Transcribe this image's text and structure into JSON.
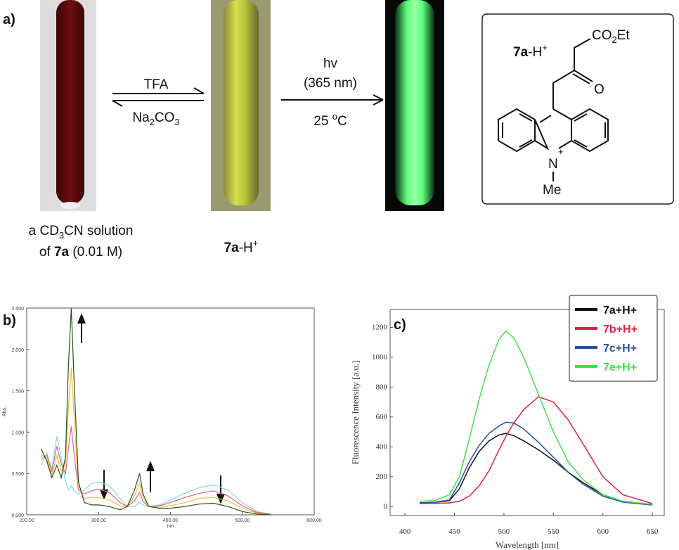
{
  "panel_a": {
    "label": "a)",
    "reagent_forward": "TFA",
    "reagent_reverse": [
      "Na",
      "2",
      "CO",
      "3"
    ],
    "irradiation": [
      "hv",
      "(365 nm)"
    ],
    "temperature": [
      "25 ",
      "o",
      "C"
    ],
    "start_caption": [
      [
        "a CD",
        "3",
        "CN solution"
      ],
      [
        "of ",
        "7a",
        " (0.01 M)"
      ]
    ],
    "product_caption": [
      "7a",
      "-H",
      "+"
    ],
    "structure": {
      "name": [
        "7a",
        "-H",
        "+"
      ],
      "ester": [
        "CO",
        "2",
        "Et"
      ],
      "carbonyl": "O",
      "nitrogen": "N",
      "charge": "+",
      "methyl": "Me"
    }
  },
  "chart_data": [
    {
      "type": "line",
      "label": "b)",
      "x_label": "nm",
      "y_label": "Abs.",
      "x": [
        220,
        228,
        235,
        242,
        248,
        254,
        258,
        262,
        266,
        272,
        280,
        290,
        300,
        315,
        330,
        340,
        350,
        357,
        362,
        370,
        385,
        400,
        420,
        440,
        460,
        480,
        500,
        520,
        540
      ],
      "series": [
        {
          "color": "#7fdde0",
          "values": [
            0.6,
            0.75,
            0.55,
            0.95,
            0.7,
            0.4,
            0.3,
            0.35,
            0.3,
            0.25,
            0.3,
            0.38,
            0.4,
            0.35,
            0.2,
            0.1,
            0.1,
            0.15,
            0.12,
            0.1,
            0.12,
            0.18,
            0.26,
            0.33,
            0.36,
            0.3,
            0.15,
            0.04,
            0.01
          ]
        },
        {
          "color": "#e0648a",
          "values": [
            0.67,
            0.72,
            0.52,
            0.83,
            0.62,
            0.5,
            0.8,
            1.07,
            0.73,
            0.3,
            0.25,
            0.29,
            0.31,
            0.27,
            0.15,
            0.1,
            0.17,
            0.27,
            0.16,
            0.1,
            0.11,
            0.15,
            0.21,
            0.26,
            0.29,
            0.23,
            0.11,
            0.03,
            0.01
          ]
        },
        {
          "color": "#e8c23a",
          "values": [
            0.73,
            0.68,
            0.48,
            0.72,
            0.53,
            0.6,
            1.3,
            1.78,
            1.17,
            0.35,
            0.2,
            0.21,
            0.21,
            0.18,
            0.11,
            0.1,
            0.23,
            0.38,
            0.21,
            0.1,
            0.09,
            0.11,
            0.15,
            0.2,
            0.21,
            0.17,
            0.08,
            0.02,
            0
          ]
        },
        {
          "color": "#2e4a1e",
          "values": [
            0.8,
            0.65,
            0.45,
            0.6,
            0.45,
            0.7,
            1.8,
            2.5,
            1.6,
            0.4,
            0.15,
            0.12,
            0.12,
            0.1,
            0.06,
            0.1,
            0.3,
            0.5,
            0.25,
            0.1,
            0.08,
            0.08,
            0.1,
            0.13,
            0.14,
            0.1,
            0.04,
            0.01,
            0
          ]
        }
      ],
      "xlim": [
        200,
        600
      ],
      "ylim": [
        0,
        2.5
      ],
      "xticks": [
        {
          "value": 200,
          "label": "200.00"
        },
        {
          "value": 300,
          "label": "300.00"
        },
        {
          "value": 400,
          "label": "400.00"
        },
        {
          "value": 500,
          "label": "500.00"
        },
        {
          "value": 600,
          "label": "600.00"
        }
      ],
      "yticks": [
        {
          "value": 0,
          "label": "0.000"
        },
        {
          "value": 0.5,
          "label": "0.500"
        },
        {
          "value": 1,
          "label": "1.000"
        },
        {
          "value": 1.5,
          "label": "1.500"
        },
        {
          "value": 2,
          "label": "2.000"
        },
        {
          "value": 2.5,
          "label": "2.500"
        }
      ]
    },
    {
      "type": "line",
      "label": "c)",
      "x_label": "Wavelength [nm]",
      "y_label": "Fluorescence Intensity [a.u.]",
      "x": [
        415,
        430,
        445,
        455,
        465,
        475,
        485,
        495,
        502,
        510,
        520,
        535,
        550,
        565,
        580,
        600,
        620,
        650
      ],
      "series": [
        {
          "name": "7a+H+",
          "color": "#111111",
          "values": [
            25,
            28,
            40,
            120,
            260,
            370,
            440,
            480,
            490,
            475,
            440,
            380,
            310,
            230,
            160,
            80,
            35,
            12
          ]
        },
        {
          "name": "7b+H+",
          "color": "#e0203f",
          "values": [
            20,
            22,
            25,
            35,
            70,
            140,
            240,
            380,
            470,
            560,
            650,
            735,
            700,
            580,
            420,
            200,
            80,
            20
          ]
        },
        {
          "name": "7c+H+",
          "color": "#2a4e9a",
          "values": [
            25,
            28,
            45,
            160,
            300,
            410,
            490,
            540,
            565,
            560,
            520,
            430,
            330,
            230,
            150,
            70,
            30,
            10
          ]
        },
        {
          "name": "7e+H+",
          "color": "#3ee04a",
          "values": [
            35,
            40,
            80,
            200,
            450,
            720,
            950,
            1120,
            1175,
            1130,
            1000,
            750,
            500,
            300,
            180,
            80,
            35,
            15
          ]
        }
      ],
      "xlim": [
        385,
        662
      ],
      "ylim": [
        -60,
        1320
      ],
      "xticks": [
        400,
        450,
        500,
        550,
        600,
        650
      ],
      "yticks": [
        0,
        200,
        400,
        600,
        800,
        1000,
        1200
      ],
      "legend": "upper right"
    }
  ]
}
